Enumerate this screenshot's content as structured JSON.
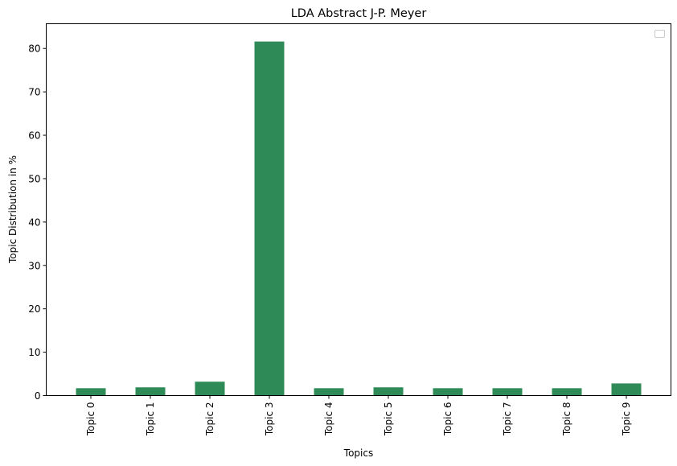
{
  "chart_data": {
    "type": "bar",
    "title": "LDA Abstract J-P. Meyer",
    "xlabel": "Topics",
    "ylabel": "Topic Distribution in %",
    "categories": [
      "Topic 0",
      "Topic 1",
      "Topic 2",
      "Topic 3",
      "Topic 4",
      "Topic 5",
      "Topic 6",
      "Topic 7",
      "Topic 8",
      "Topic 9"
    ],
    "values": [
      1.7,
      1.9,
      3.2,
      81.6,
      1.7,
      1.9,
      1.7,
      1.7,
      1.7,
      2.8
    ],
    "ylim": [
      0,
      85.7
    ],
    "yticks": [
      0,
      10,
      20,
      30,
      40,
      50,
      60,
      70,
      80
    ],
    "bar_color": "#2e8b57",
    "grid": false,
    "legend": {
      "placement": "top-right",
      "entries": []
    }
  }
}
